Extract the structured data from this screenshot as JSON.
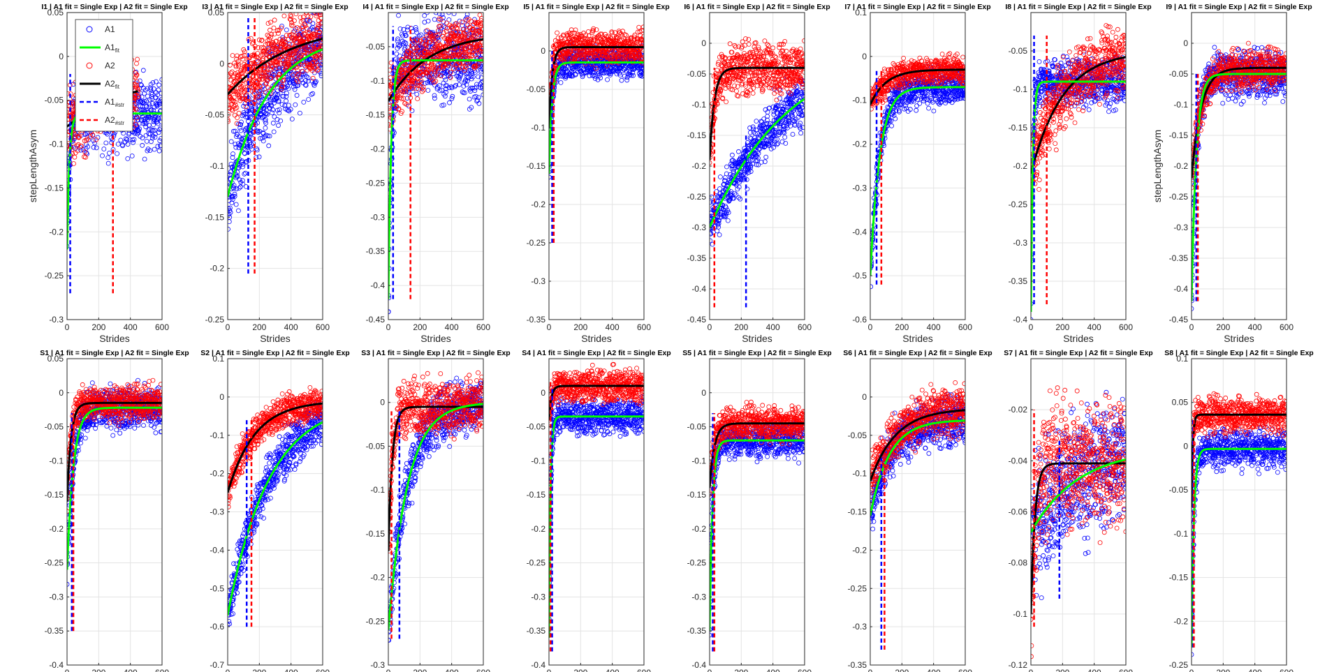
{
  "figure": {
    "x_label": "Strides",
    "y_label": "stepLengthAsym",
    "legend": {
      "placement": "inside-top of first panel",
      "entries": [
        {
          "key": "A1",
          "label": "A1",
          "sub": "",
          "style": "marker",
          "color": "#0000ff"
        },
        {
          "key": "A1fit",
          "label": "A1",
          "sub": "fit",
          "style": "solid",
          "color": "#00ff00"
        },
        {
          "key": "A2",
          "label": "A2",
          "sub": "",
          "style": "marker",
          "color": "#ff0000"
        },
        {
          "key": "A2fit",
          "label": "A2",
          "sub": "fit",
          "style": "solid",
          "color": "#000000"
        },
        {
          "key": "A1str",
          "label": "A1",
          "sub": "#str",
          "style": "dashed",
          "color": "#0000ff"
        },
        {
          "key": "A2str",
          "label": "A2",
          "sub": "#str",
          "style": "dashed",
          "color": "#ff0000"
        }
      ]
    },
    "colors": {
      "A1": "#0000ff",
      "A1_fit": "#00ff00",
      "A2": "#ff0000",
      "A2_fit": "#000000",
      "grid": "#e3e3e3"
    }
  },
  "chart_data": [
    {
      "type": "scatter",
      "title": "I1 | A1 fit = Single Exp | A2 fit = Single Exp",
      "xlim": [
        0,
        600
      ],
      "ylim": [
        -0.3,
        0.05
      ],
      "yticks": [
        "0.05",
        "0",
        "-0.05",
        "-0.1",
        "-0.15",
        "-0.2",
        "-0.25",
        "-0.3"
      ],
      "xticks": [
        "0",
        "200",
        "400",
        "600"
      ],
      "ylabel": "stepLengthAsym",
      "A1": {
        "start": -0.22,
        "end": -0.065,
        "tau": 15,
        "noise": 0.02,
        "n": 600
      },
      "A2": {
        "start": -0.08,
        "end": -0.02,
        "tau": 400,
        "noise": 0.02,
        "n": 450
      },
      "A1_str": {
        "x": 20,
        "y_lo": -0.27,
        "y_hi": -0.02
      },
      "A2_str": {
        "x": 290,
        "y_lo": -0.27,
        "y_hi": -0.08
      }
    },
    {
      "type": "scatter",
      "title": "I3 | A1 fit = Single Exp | A2 fit = Single Exp",
      "xlim": [
        0,
        600
      ],
      "ylim": [
        -0.25,
        0.05
      ],
      "yticks": [
        "0.05",
        "0",
        "-0.05",
        "-0.1",
        "-0.15",
        "-0.2",
        "-0.25"
      ],
      "xticks": [
        "0",
        "200",
        "400",
        "600"
      ],
      "ylabel": "",
      "A1": {
        "start": -0.13,
        "end": 0.03,
        "tau": 260,
        "noise": 0.02,
        "n": 600
      },
      "A2": {
        "start": -0.03,
        "end": 0.04,
        "tau": 400,
        "noise": 0.015,
        "n": 600
      },
      "A1_str": {
        "x": 130,
        "y_lo": -0.205,
        "y_hi": 0.045
      },
      "A2_str": {
        "x": 170,
        "y_lo": -0.205,
        "y_hi": 0.045
      }
    },
    {
      "type": "scatter",
      "title": "I4 | A1 fit = Single Exp | A2 fit = Single Exp",
      "xlim": [
        0,
        600
      ],
      "ylim": [
        -0.45,
        0
      ],
      "yticks": [
        "-0.05",
        "-0.1",
        "-0.15",
        "-0.2",
        "-0.25",
        "-0.3",
        "-0.35",
        "-0.4",
        "-0.45"
      ],
      "xticks": [
        "0",
        "200",
        "400",
        "600"
      ],
      "ylabel": "",
      "A1": {
        "start": -0.42,
        "end": -0.07,
        "tau": 18,
        "noise": 0.03,
        "n": 600
      },
      "A2": {
        "start": -0.13,
        "end": -0.03,
        "tau": 250,
        "noise": 0.02,
        "n": 600
      },
      "A1_str": {
        "x": 30,
        "y_lo": -0.42,
        "y_hi": -0.02
      },
      "A2_str": {
        "x": 140,
        "y_lo": -0.42,
        "y_hi": -0.02
      }
    },
    {
      "type": "scatter",
      "title": "I5 | A1 fit = Single Exp | A2 fit = Single Exp",
      "xlim": [
        0,
        600
      ],
      "ylim": [
        -0.35,
        0.05
      ],
      "yticks": [
        "0",
        "-0.05",
        "-0.1",
        "-0.15",
        "-0.2",
        "-0.25",
        "-0.3",
        "-0.35"
      ],
      "xticks": [
        "0",
        "200",
        "400",
        "600"
      ],
      "ylabel": "",
      "A1": {
        "start": -0.16,
        "end": -0.015,
        "tau": 20,
        "noise": 0.01,
        "n": 600
      },
      "A2": {
        "start": -0.1,
        "end": 0.005,
        "tau": 20,
        "noise": 0.01,
        "n": 600
      },
      "A1_str": {
        "x": 20,
        "y_lo": -0.25,
        "y_hi": 0.0
      },
      "A2_str": {
        "x": 30,
        "y_lo": -0.25,
        "y_hi": 0.01
      }
    },
    {
      "type": "scatter",
      "title": "I6 | A1 fit = Single Exp | A2 fit = Single Exp",
      "xlim": [
        0,
        600
      ],
      "ylim": [
        -0.45,
        0.05
      ],
      "yticks": [
        "0",
        "-0.05",
        "-0.1",
        "-0.15",
        "-0.2",
        "-0.25",
        "-0.3",
        "-0.35",
        "-0.4",
        "-0.45"
      ],
      "xticks": [
        "0",
        "200",
        "400",
        "600"
      ],
      "ylabel": "",
      "A1": {
        "start": -0.3,
        "end": 0.0,
        "tau": 500,
        "noise": 0.02,
        "n": 600
      },
      "A2": {
        "start": -0.19,
        "end": -0.04,
        "tau": 30,
        "noise": 0.02,
        "n": 600
      },
      "A1_str": {
        "x": 230,
        "y_lo": -0.43,
        "y_hi": -0.15
      },
      "A2_str": {
        "x": 30,
        "y_lo": -0.43,
        "y_hi": -0.04
      }
    },
    {
      "type": "scatter",
      "title": "I7 | A1 fit = Single Exp | A2 fit = Single Exp",
      "xlim": [
        0,
        600
      ],
      "ylim": [
        -0.6,
        0.1
      ],
      "yticks": [
        "0.1",
        "0",
        "-0.1",
        "-0.2",
        "-0.3",
        "-0.4",
        "-0.5",
        "-0.6"
      ],
      "xticks": [
        "0",
        "200",
        "400",
        "600"
      ],
      "ylabel": "",
      "A1": {
        "start": -0.5,
        "end": -0.07,
        "tau": 60,
        "noise": 0.02,
        "n": 600
      },
      "A2": {
        "start": -0.11,
        "end": -0.03,
        "tau": 100,
        "noise": 0.015,
        "n": 600
      },
      "A1_str": {
        "x": 40,
        "y_lo": -0.52,
        "y_hi": -0.03
      },
      "A2_str": {
        "x": 70,
        "y_lo": -0.52,
        "y_hi": -0.03
      }
    },
    {
      "type": "scatter",
      "title": "I8 | A1 fit = Single Exp | A2 fit = Single Exp",
      "xlim": [
        0,
        600
      ],
      "ylim": [
        -0.4,
        0
      ],
      "yticks": [
        "-0.05",
        "-0.1",
        "-0.15",
        "-0.2",
        "-0.25",
        "-0.3",
        "-0.35",
        "-0.4"
      ],
      "xticks": [
        "0",
        "200",
        "400",
        "600"
      ],
      "ylabel": "",
      "A1": {
        "start": -0.39,
        "end": -0.09,
        "tau": 12,
        "noise": 0.015,
        "n": 600
      },
      "A2": {
        "start": -0.21,
        "end": -0.05,
        "tau": 200,
        "noise": 0.02,
        "n": 600
      },
      "A1_str": {
        "x": 20,
        "y_lo": -0.38,
        "y_hi": -0.03
      },
      "A2_str": {
        "x": 100,
        "y_lo": -0.38,
        "y_hi": -0.03
      }
    },
    {
      "type": "scatter",
      "title": "I9 | A1 fit = Single Exp | A2 fit = Single Exp",
      "xlim": [
        0,
        600
      ],
      "ylim": [
        -0.45,
        0.05
      ],
      "yticks": [
        "0",
        "-0.05",
        "-0.1",
        "-0.15",
        "-0.2",
        "-0.25",
        "-0.3",
        "-0.35",
        "-0.4",
        "-0.45"
      ],
      "xticks": [
        "0",
        "200",
        "400",
        "600"
      ],
      "ylabel": "stepLengthAsym",
      "A1": {
        "start": -0.42,
        "end": -0.05,
        "tau": 30,
        "noise": 0.02,
        "n": 600
      },
      "A2": {
        "start": -0.22,
        "end": -0.04,
        "tau": 60,
        "noise": 0.015,
        "n": 600
      },
      "A1_str": {
        "x": 30,
        "y_lo": -0.42,
        "y_hi": -0.05
      },
      "A2_str": {
        "x": 40,
        "y_lo": -0.42,
        "y_hi": -0.05
      }
    },
    {
      "type": "scatter",
      "title": "S1 | A1 fit = Single Exp | A2 fit = Single Exp",
      "xlim": [
        0,
        600
      ],
      "ylim": [
        -0.4,
        0.05
      ],
      "yticks": [
        "0.05",
        "0",
        "-0.05",
        "-0.1",
        "-0.15",
        "-0.2",
        "-0.25",
        "-0.3",
        "-0.35",
        "-0.4"
      ],
      "xticks": [
        "0",
        "200",
        "400",
        "600"
      ],
      "ylabel": "",
      "A1": {
        "start": -0.26,
        "end": -0.022,
        "tau": 40,
        "noise": 0.015,
        "n": 600
      },
      "A2": {
        "start": -0.16,
        "end": -0.015,
        "tau": 25,
        "noise": 0.012,
        "n": 600
      },
      "A1_str": {
        "x": 30,
        "y_lo": -0.35,
        "y_hi": -0.03
      },
      "A2_str": {
        "x": 40,
        "y_lo": -0.35,
        "y_hi": -0.03
      }
    },
    {
      "type": "scatter",
      "title": "S2 | A1 fit = Single Exp | A2 fit = Single Exp",
      "xlim": [
        0,
        600
      ],
      "ylim": [
        -0.7,
        0.1
      ],
      "yticks": [
        "0.1",
        "0",
        "-0.1",
        "-0.2",
        "-0.3",
        "-0.4",
        "-0.5",
        "-0.6",
        "-0.7"
      ],
      "xticks": [
        "0",
        "200",
        "400",
        "600"
      ],
      "ylabel": "",
      "A1": {
        "start": -0.57,
        "end": -0.01,
        "tau": 260,
        "noise": 0.03,
        "n": 600
      },
      "A2": {
        "start": -0.25,
        "end": -0.01,
        "tau": 170,
        "noise": 0.02,
        "n": 600
      },
      "A1_str": {
        "x": 120,
        "y_lo": -0.6,
        "y_hi": -0.06
      },
      "A2_str": {
        "x": 150,
        "y_lo": -0.6,
        "y_hi": -0.06
      }
    },
    {
      "type": "scatter",
      "title": "S3 | A1 fit = Single Exp | A2 fit = Single Exp",
      "xlim": [
        0,
        600
      ],
      "ylim": [
        -0.3,
        0.05
      ],
      "yticks": [
        "0",
        "-0.05",
        "-0.1",
        "-0.15",
        "-0.2",
        "-0.25",
        "-0.3"
      ],
      "xticks": [
        "0",
        "200",
        "400",
        "600"
      ],
      "ylabel": "",
      "A1": {
        "start": -0.26,
        "end": 0.0,
        "tau": 120,
        "noise": 0.015,
        "n": 600
      },
      "A2": {
        "start": -0.17,
        "end": -0.005,
        "tau": 25,
        "noise": 0.015,
        "n": 600
      },
      "A1_str": {
        "x": 70,
        "y_lo": -0.27,
        "y_hi": -0.01
      },
      "A2_str": {
        "x": 20,
        "y_lo": -0.27,
        "y_hi": -0.01
      }
    },
    {
      "type": "scatter",
      "title": "S4 | A1 fit = Single Exp | A2 fit = Single Exp",
      "xlim": [
        0,
        600
      ],
      "ylim": [
        -0.4,
        0.05
      ],
      "yticks": [
        "0",
        "-0.05",
        "-0.1",
        "-0.15",
        "-0.2",
        "-0.25",
        "-0.3",
        "-0.35",
        "-0.4"
      ],
      "xticks": [
        "0",
        "200",
        "400",
        "600"
      ],
      "ylabel": "",
      "A1": {
        "start": -0.36,
        "end": -0.035,
        "tau": 10,
        "noise": 0.012,
        "n": 600
      },
      "A2": {
        "start": -0.04,
        "end": 0.01,
        "tau": 15,
        "noise": 0.012,
        "n": 600
      },
      "A1_str": {
        "x": 20,
        "y_lo": -0.38,
        "y_hi": 0.01
      },
      "A2_str": {
        "x": 10,
        "y_lo": -0.38,
        "y_hi": 0.02
      }
    },
    {
      "type": "scatter",
      "title": "S5 | A1 fit = Single Exp | A2 fit = Single Exp",
      "xlim": [
        0,
        600
      ],
      "ylim": [
        -0.4,
        0.05
      ],
      "yticks": [
        "0",
        "-0.05",
        "-0.1",
        "-0.15",
        "-0.2",
        "-0.25",
        "-0.3",
        "-0.35",
        "-0.4"
      ],
      "xticks": [
        "0",
        "200",
        "400",
        "600"
      ],
      "ylabel": "",
      "A1": {
        "start": -0.35,
        "end": -0.07,
        "tau": 18,
        "noise": 0.012,
        "n": 600
      },
      "A2": {
        "start": -0.14,
        "end": -0.045,
        "tau": 30,
        "noise": 0.012,
        "n": 600
      },
      "A1_str": {
        "x": 20,
        "y_lo": -0.38,
        "y_hi": -0.03
      },
      "A2_str": {
        "x": 30,
        "y_lo": -0.38,
        "y_hi": -0.03
      }
    },
    {
      "type": "scatter",
      "title": "S6 | A1 fit = Single Exp | A2 fit = Single Exp",
      "xlim": [
        0,
        600
      ],
      "ylim": [
        -0.35,
        0.05
      ],
      "yticks": [
        "0",
        "-0.05",
        "-0.1",
        "-0.15",
        "-0.2",
        "-0.25",
        "-0.3",
        "-0.35"
      ],
      "xticks": [
        "0",
        "200",
        "400",
        "600"
      ],
      "ylabel": "",
      "A1": {
        "start": -0.155,
        "end": -0.03,
        "tau": 120,
        "noise": 0.015,
        "n": 600
      },
      "A2": {
        "start": -0.11,
        "end": -0.015,
        "tau": 160,
        "noise": 0.015,
        "n": 600
      },
      "A1_str": {
        "x": 70,
        "y_lo": -0.33,
        "y_hi": -0.08
      },
      "A2_str": {
        "x": 90,
        "y_lo": -0.33,
        "y_hi": -0.08
      }
    },
    {
      "type": "scatter",
      "title": "S7 | A1 fit = Single Exp | A2 fit = Single Exp",
      "xlim": [
        0,
        600
      ],
      "ylim": [
        -0.12,
        0
      ],
      "yticks": [
        "-0.02",
        "-0.04",
        "-0.06",
        "-0.08",
        "-0.1",
        "-0.12"
      ],
      "xticks": [
        "0",
        "200",
        "400",
        "600"
      ],
      "ylabel": "",
      "A1": {
        "start": -0.068,
        "end": -0.035,
        "tau": 300,
        "noise": 0.012,
        "n": 600
      },
      "A2": {
        "start": -0.1,
        "end": -0.041,
        "tau": 25,
        "noise": 0.012,
        "n": 600
      },
      "A1_str": {
        "x": 180,
        "y_lo": -0.094,
        "y_hi": -0.032
      },
      "A2_str": {
        "x": 20,
        "y_lo": -0.105,
        "y_hi": -0.02
      }
    },
    {
      "type": "scatter",
      "title": "S8 | A1 fit = Single Exp | A2 fit = Single Exp",
      "xlim": [
        0,
        600
      ],
      "ylim": [
        -0.25,
        0.1
      ],
      "yticks": [
        "0.1",
        "0.05",
        "0",
        "-0.05",
        "-0.1",
        "-0.15",
        "-0.2",
        "-0.25"
      ],
      "xticks": [
        "0",
        "200",
        "400",
        "600"
      ],
      "ylabel": "",
      "A1": {
        "start": -0.23,
        "end": -0.003,
        "tau": 15,
        "noise": 0.01,
        "n": 600
      },
      "A2": {
        "start": -0.07,
        "end": 0.036,
        "tau": 8,
        "noise": 0.01,
        "n": 600
      },
      "A1_str": {
        "x": 10,
        "y_lo": -0.23,
        "y_hi": 0.03
      },
      "A2_str": {
        "x": 15,
        "y_lo": -0.23,
        "y_hi": 0.03
      }
    }
  ]
}
